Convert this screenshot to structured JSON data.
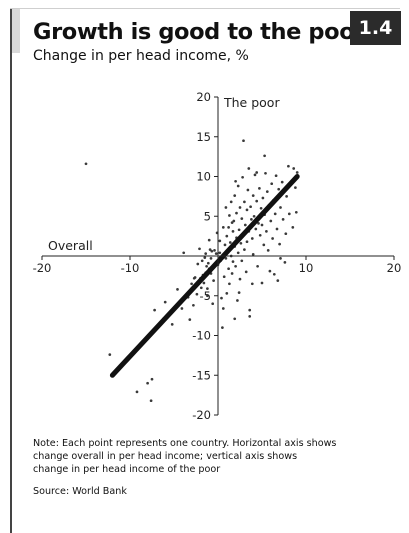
{
  "badge": "1.4",
  "title": "Growth is good to the poor",
  "subtitle": "Change in per head income, %",
  "note_lines": [
    "Note: Each point represents one country. Horizontal axis shows",
    "change overall in per head income; vertical axis shows",
    "change in per head income of the poor"
  ],
  "source": "Source: World Bank",
  "chart_data": {
    "type": "scatter",
    "xlabel": "Overall",
    "ylabel": "The poor",
    "xlim": [
      -20,
      20
    ],
    "ylim": [
      -20,
      20
    ],
    "x_ticks": [
      -20,
      -10,
      0,
      10,
      20
    ],
    "y_ticks": [
      -20,
      -15,
      -10,
      -5,
      0,
      5,
      10,
      15,
      20
    ],
    "x_tick_labels": [
      "-20",
      "-10",
      "",
      "10",
      "20"
    ],
    "y_tick_labels": [
      "-20",
      "-15",
      "-10",
      "-5",
      "",
      "5",
      "10",
      "15",
      "20"
    ],
    "trend_line": {
      "from": [
        -12,
        -15
      ],
      "to": [
        9,
        10
      ]
    },
    "colors": {
      "points": "#3a3a3a",
      "trend": "#111111",
      "axis": "#222222"
    },
    "points": [
      [
        -12.3,
        -12.4
      ],
      [
        -9.2,
        -17.1
      ],
      [
        -8.0,
        -16.0
      ],
      [
        -7.6,
        -18.2
      ],
      [
        -7.5,
        -15.5
      ],
      [
        -7.2,
        -6.8
      ],
      [
        -6.0,
        -5.8
      ],
      [
        -5.2,
        -8.6
      ],
      [
        -4.1,
        -6.6
      ],
      [
        -3.4,
        -5.2
      ],
      [
        -3.2,
        -8.0
      ],
      [
        -3.0,
        -3.5
      ],
      [
        -2.7,
        -2.8
      ],
      [
        -2.6,
        -2.7
      ],
      [
        -2.4,
        -4.8
      ],
      [
        -2.3,
        -1.0
      ],
      [
        -2.0,
        -2.8
      ],
      [
        -1.9,
        -4.0
      ],
      [
        -1.8,
        -0.6
      ],
      [
        -1.7,
        -2.4
      ],
      [
        -1.6,
        -3.4
      ],
      [
        -1.5,
        -0.2
      ],
      [
        -1.4,
        -2.1
      ],
      [
        -1.4,
        0.3
      ],
      [
        -1.3,
        -1.3
      ],
      [
        -1.2,
        -4.1
      ],
      [
        -1.2,
        -5.0
      ],
      [
        -1.1,
        -0.9
      ],
      [
        -1.0,
        -1.6
      ],
      [
        -0.9,
        0.8
      ],
      [
        -0.8,
        -2.2
      ],
      [
        -0.8,
        -0.3
      ],
      [
        -0.7,
        0.6
      ],
      [
        -0.6,
        -1.4
      ],
      [
        -0.5,
        -3.1
      ],
      [
        -0.4,
        0.7
      ],
      [
        -0.3,
        -0.9
      ],
      [
        -0.2,
        0.3
      ],
      [
        0.0,
        -1.1
      ],
      [
        0.2,
        0.4
      ],
      [
        0.3,
        -0.6
      ],
      [
        0.4,
        -5.3
      ],
      [
        0.5,
        -9.0
      ],
      [
        0.6,
        -6.6
      ],
      [
        0.7,
        -2.6
      ],
      [
        0.8,
        1.4
      ],
      [
        0.9,
        -0.3
      ],
      [
        1.0,
        2.5
      ],
      [
        1.0,
        -4.7
      ],
      [
        1.1,
        0.6
      ],
      [
        1.2,
        3.6
      ],
      [
        1.2,
        -1.6
      ],
      [
        1.3,
        5.1
      ],
      [
        1.3,
        -3.5
      ],
      [
        1.4,
        1.7
      ],
      [
        1.5,
        0.0
      ],
      [
        1.5,
        6.8
      ],
      [
        1.6,
        -2.2
      ],
      [
        1.7,
        3.1
      ],
      [
        1.7,
        -0.7
      ],
      [
        1.8,
        4.4
      ],
      [
        1.9,
        7.6
      ],
      [
        1.9,
        1.2
      ],
      [
        2.0,
        -1.3
      ],
      [
        2.1,
        5.4
      ],
      [
        2.1,
        2.3
      ],
      [
        2.2,
        -5.6
      ],
      [
        2.3,
        0.4
      ],
      [
        2.3,
        8.8
      ],
      [
        2.4,
        3.3
      ],
      [
        2.5,
        6.1
      ],
      [
        2.5,
        -2.9
      ],
      [
        2.6,
        1.6
      ],
      [
        2.7,
        4.7
      ],
      [
        2.7,
        -0.6
      ],
      [
        2.8,
        9.9
      ],
      [
        2.9,
        2.8
      ],
      [
        2.9,
        14.5
      ],
      [
        3.0,
        6.8
      ],
      [
        3.0,
        0.8
      ],
      [
        3.1,
        3.9
      ],
      [
        3.2,
        -2.0
      ],
      [
        3.3,
        5.8
      ],
      [
        3.3,
        1.8
      ],
      [
        3.4,
        8.3
      ],
      [
        3.5,
        3.1
      ],
      [
        3.6,
        -6.8
      ],
      [
        3.6,
        -7.6
      ],
      [
        3.7,
        6.2
      ],
      [
        3.8,
        4.6
      ],
      [
        3.9,
        2.2
      ],
      [
        4.0,
        7.6
      ],
      [
        4.0,
        0.2
      ],
      [
        4.1,
        5.0
      ],
      [
        4.2,
        10.2
      ],
      [
        4.3,
        3.4
      ],
      [
        4.4,
        6.9
      ],
      [
        4.5,
        -1.3
      ],
      [
        4.6,
        4.1
      ],
      [
        4.7,
        8.5
      ],
      [
        4.8,
        2.6
      ],
      [
        4.9,
        6.0
      ],
      [
        5.0,
        3.9
      ],
      [
        5.0,
        -3.4
      ],
      [
        5.1,
        7.3
      ],
      [
        5.2,
        1.4
      ],
      [
        5.3,
        5.2
      ],
      [
        5.4,
        10.4
      ],
      [
        5.5,
        3.1
      ],
      [
        5.6,
        8.1
      ],
      [
        5.7,
        0.7
      ],
      [
        5.8,
        6.4
      ],
      [
        5.9,
        -1.9
      ],
      [
        6.0,
        4.4
      ],
      [
        6.1,
        9.1
      ],
      [
        6.2,
        2.2
      ],
      [
        6.3,
        7.0
      ],
      [
        6.5,
        5.3
      ],
      [
        6.6,
        10.1
      ],
      [
        6.7,
        3.4
      ],
      [
        6.9,
        8.4
      ],
      [
        7.0,
        1.5
      ],
      [
        7.1,
        6.1
      ],
      [
        7.3,
        9.3
      ],
      [
        7.4,
        4.6
      ],
      [
        7.6,
        -0.8
      ],
      [
        7.7,
        2.8
      ],
      [
        7.8,
        7.5
      ],
      [
        8.0,
        11.3
      ],
      [
        8.1,
        5.3
      ],
      [
        8.3,
        9.0
      ],
      [
        8.5,
        3.6
      ],
      [
        8.6,
        11.0
      ],
      [
        8.8,
        8.6
      ],
      [
        9.0,
        10.5
      ],
      [
        -15.0,
        11.6
      ],
      [
        -6.2,
        -7.9
      ],
      [
        -4.6,
        -4.2
      ],
      [
        -3.9,
        0.4
      ],
      [
        -2.1,
        0.9
      ],
      [
        -0.1,
        2.9
      ],
      [
        0.6,
        3.6
      ],
      [
        0.9,
        6.1
      ],
      [
        1.6,
        4.2
      ],
      [
        2.4,
        -4.6
      ],
      [
        3.9,
        -3.5
      ],
      [
        4.4,
        10.5
      ],
      [
        6.4,
        -2.3
      ],
      [
        7.1,
        -0.3
      ],
      [
        -1.0,
        2.0
      ],
      [
        0.2,
        1.9
      ],
      [
        2.0,
        9.4
      ],
      [
        3.5,
        11.0
      ],
      [
        5.3,
        12.6
      ],
      [
        -2.8,
        -6.2
      ],
      [
        -0.6,
        -6.0
      ],
      [
        1.9,
        -7.9
      ],
      [
        6.8,
        -3.1
      ],
      [
        8.9,
        5.5
      ]
    ]
  }
}
